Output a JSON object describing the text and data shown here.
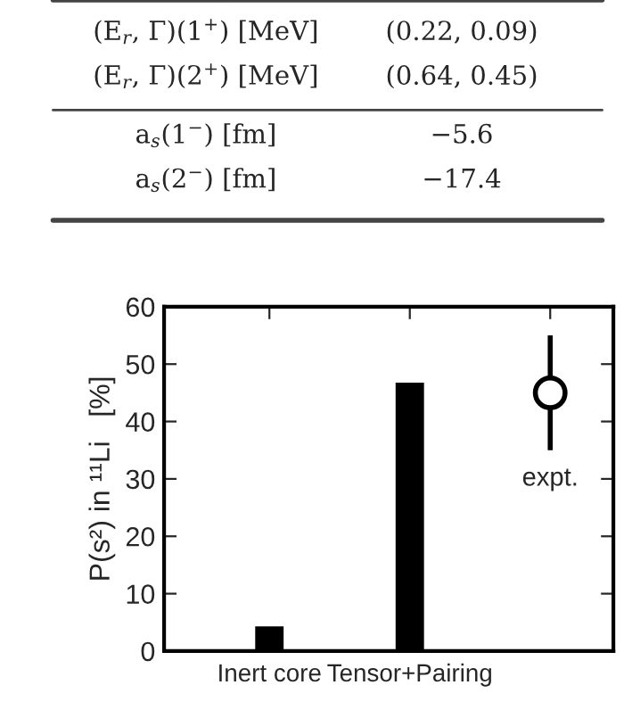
{
  "chart_data": [
    {
      "type": "other",
      "annotations": [
        "(E$_{r}$, Γ)(1$^{+}$) [MeV]",
        "(0.22, 0.09)",
        "(E$_{r}$, Γ)(2$^{+}$) [MeV]",
        "(0.64, 0.45)",
        "a$_{s}$(1$^{−}$) [fm]",
        "−5.6",
        "a$_{s}$(2$^{−}$) [fm]",
        "−17.4"
      ]
    },
    {
      "type": "bar",
      "categories": [
        "Inert core",
        "Tensor+Pairing",
        null
      ],
      "ylabel": "P(s²) in ¹¹Li   [%]",
      "ylim": [
        0,
        60
      ],
      "yticks": [
        0,
        10,
        20,
        30,
        40,
        50,
        60
      ],
      "grid": false,
      "series": [
        {
          "color": "#000000",
          "values": [
            4.5,
            47,
            null
          ]
        },
        {
          "type": "scatter",
          "color": "#000000",
          "marker": "circle",
          "values": [
            null,
            null,
            45
          ],
          "errors": [
            null,
            null,
            [
              35,
              55
            ]
          ]
        }
      ],
      "annotations": [
        "expt."
      ]
    }
  ]
}
